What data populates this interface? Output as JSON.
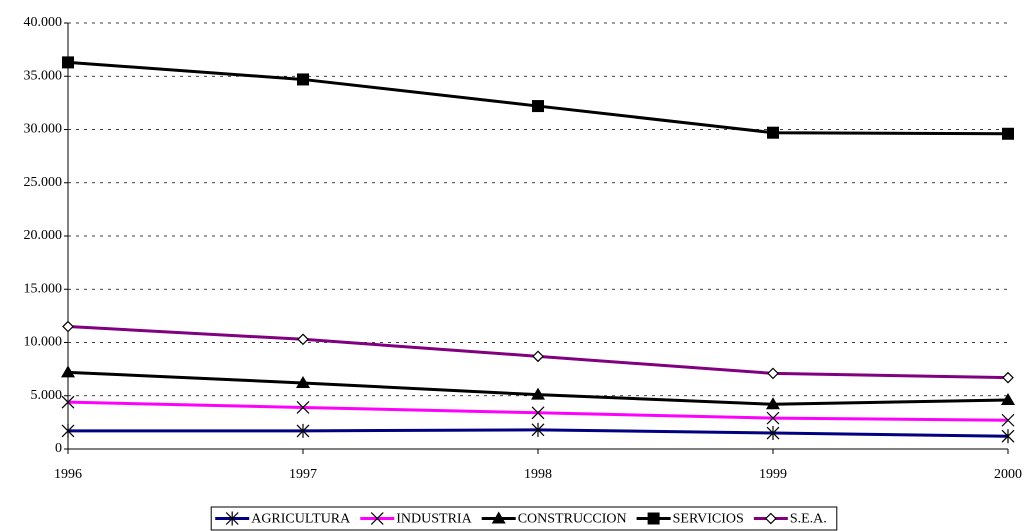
{
  "chart_data": {
    "type": "line",
    "categories": [
      "1996",
      "1997",
      "1998",
      "1999",
      "2000"
    ],
    "ylim": [
      0,
      40000
    ],
    "yticks": [
      0,
      {
        "value": 5000,
        "label": "5.000"
      },
      {
        "value": 10000,
        "label": "10.000"
      },
      {
        "value": 15000,
        "label": "15.000"
      },
      {
        "value": 20000,
        "label": "20.000"
      },
      {
        "value": 25000,
        "label": "25.000"
      },
      {
        "value": 30000,
        "label": "30.000"
      },
      {
        "value": 35000,
        "label": "35.000"
      },
      {
        "value": 40000,
        "label": "40.000"
      }
    ],
    "grid": true,
    "legend": "bottom",
    "series": [
      {
        "name": "AGRICULTURA",
        "color": "#000080",
        "marker": "asterisk",
        "values": [
          1700,
          1700,
          1800,
          1500,
          1200
        ]
      },
      {
        "name": "INDUSTRIA",
        "color": "#ff00ff",
        "marker": "x",
        "values": [
          4400,
          3900,
          3400,
          2900,
          2700
        ]
      },
      {
        "name": "CONSTRUCCION",
        "color": "#000000",
        "marker": "triangle",
        "values": [
          7200,
          6200,
          5100,
          4200,
          4600
        ]
      },
      {
        "name": "SERVICIOS",
        "color": "#000000",
        "marker": "square",
        "values": [
          36300,
          34700,
          32200,
          29700,
          29600
        ]
      },
      {
        "name": "S.E.A.",
        "color": "#800080",
        "marker": "diamond",
        "values": [
          11500,
          10300,
          8700,
          7100,
          6700
        ]
      }
    ]
  }
}
